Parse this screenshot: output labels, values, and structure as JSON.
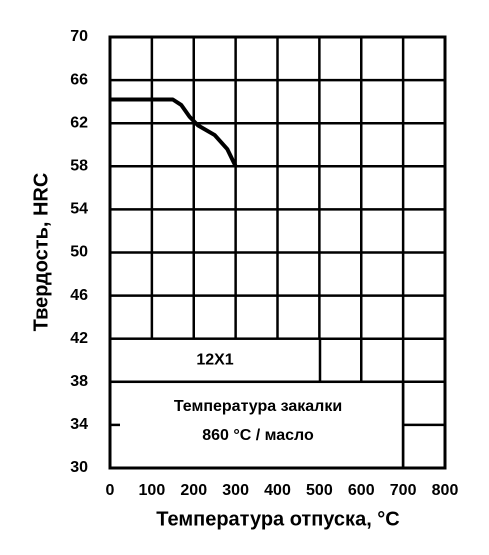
{
  "chart_data": {
    "type": "line",
    "ylabel": "Твердость, HRC",
    "xlabel": "Температура отпуска, °C",
    "annotations": [
      "12X1",
      "Температура закалки",
      "860 °C / масло"
    ],
    "x": [
      0,
      150,
      170,
      190,
      210,
      250,
      280,
      300
    ],
    "series": [
      {
        "color": "#000000",
        "values": [
          64.2,
          64.2,
          63.7,
          62.6,
          61.8,
          60.9,
          59.6,
          58
        ]
      }
    ],
    "xlim": [
      0,
      800
    ],
    "xticks": [
      0,
      100,
      200,
      300,
      400,
      500,
      600,
      700,
      800
    ],
    "ylim": [
      30,
      70
    ],
    "yticks": [
      30,
      34,
      38,
      42,
      46,
      50,
      54,
      58,
      62,
      66,
      70
    ],
    "grid": true
  }
}
